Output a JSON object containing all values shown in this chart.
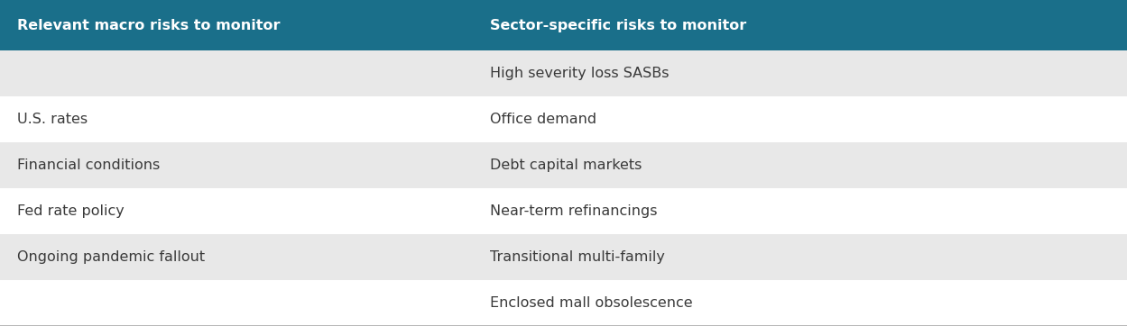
{
  "header": [
    "Relevant macro risks to monitor",
    "Sector-specific risks to monitor"
  ],
  "header_bg": "#1a6f8a",
  "header_text_color": "#ffffff",
  "rows": [
    {
      "left": "",
      "right": "High severity loss SASBs",
      "shaded": true
    },
    {
      "left": "U.S. rates",
      "right": "Office demand",
      "shaded": false
    },
    {
      "left": "Financial conditions",
      "right": "Debt capital markets",
      "shaded": true
    },
    {
      "left": "Fed rate policy",
      "right": "Near-term refinancings",
      "shaded": false
    },
    {
      "left": "Ongoing pandemic fallout",
      "right": "Transitional multi-family",
      "shaded": true
    },
    {
      "left": "",
      "right": "Enclosed mall obsolescence",
      "shaded": false
    }
  ],
  "shaded_bg": "#e8e8e8",
  "white_bg": "#ffffff",
  "body_text_color": "#3a3a3a",
  "col_split": 0.42,
  "header_fontsize": 11.5,
  "body_fontsize": 11.5,
  "bottom_line_color": "#aaaaaa"
}
